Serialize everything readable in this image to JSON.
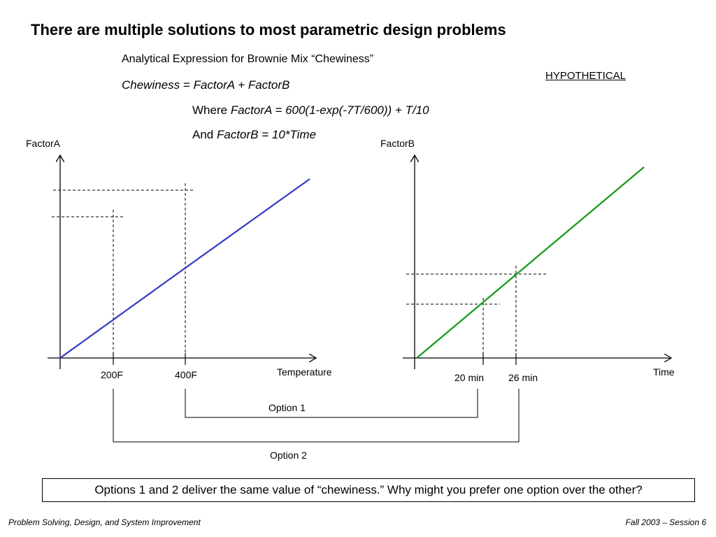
{
  "slide": {
    "title": "There are multiple solutions to most parametric design problems",
    "subtitle": "Analytical Expression for Brownie Mix “Chewiness”",
    "stamp": "HYPOTHETICAL"
  },
  "equations": {
    "main": {
      "lhs": "Chewiness",
      "op": "=",
      "rhs": "FactorA + FactorB"
    },
    "factor_a": {
      "lead": "Where",
      "expr": "FactorA = 600(1-exp(-7T/600)) + T/10"
    },
    "factor_b": {
      "lead": "And",
      "expr": "FactorB = 10*Time"
    }
  },
  "plot_a": {
    "y_label": "FactorA",
    "x_label": "Temperature",
    "ticks": [
      "200F",
      "400F"
    ],
    "line_color": "#3a3fc4"
  },
  "plot_b": {
    "y_label": "FactorB",
    "x_label": "Time",
    "ticks": [
      "20 min",
      "26 min"
    ],
    "line_color": "#1a9a1a"
  },
  "options": {
    "option1": "Option 1",
    "option2": "Option 2"
  },
  "question": "Options 1 and 2 deliver the same value of “chewiness.” Why might you prefer one option over the other?",
  "footer": {
    "left": "Problem Solving, Design, and System Improvement",
    "right": "Fall 2003 – Session 6"
  }
}
